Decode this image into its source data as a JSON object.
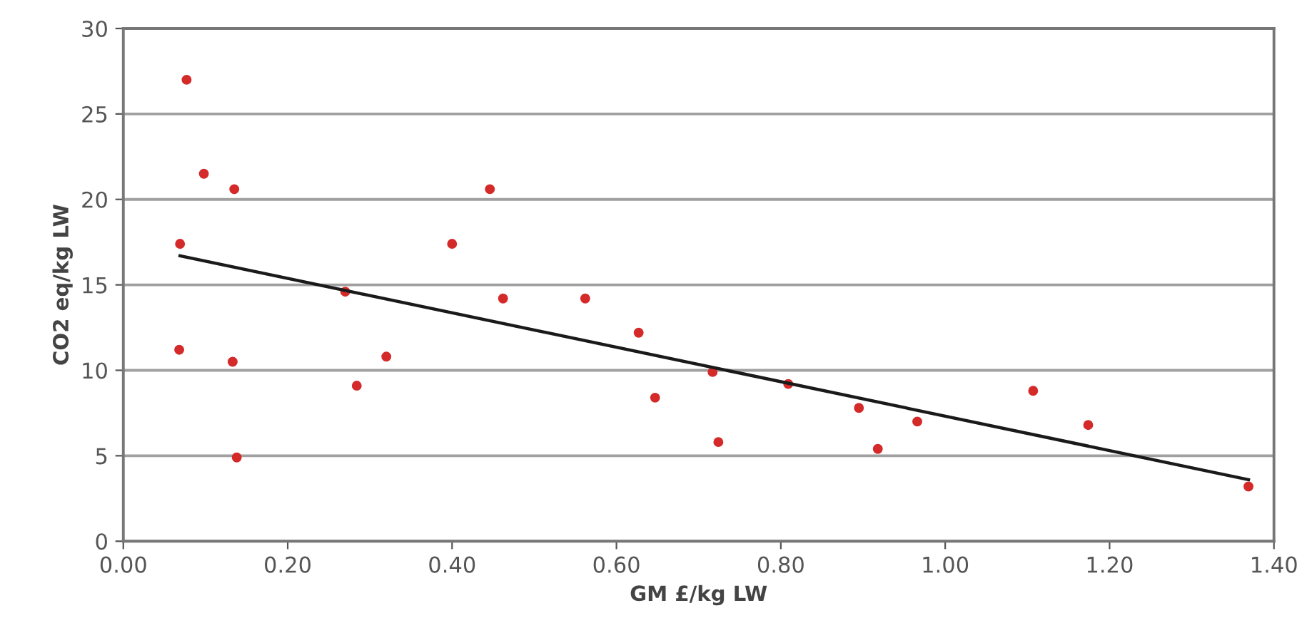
{
  "chart_data": {
    "type": "scatter",
    "xlabel": "GM £/kg LW",
    "ylabel": "CO2 eq/kg LW",
    "xlim": [
      0,
      1.4
    ],
    "xticks": [
      {
        "value": 0,
        "label": "0.00"
      },
      {
        "value": 0.2,
        "label": "0.20"
      },
      {
        "value": 0.4,
        "label": "0.40"
      },
      {
        "value": 0.6,
        "label": "0.60"
      },
      {
        "value": 0.8,
        "label": "0.80"
      },
      {
        "value": 1.0,
        "label": "1.00"
      },
      {
        "value": 1.2,
        "label": "1.20"
      },
      {
        "value": 1.4,
        "label": "1.40"
      }
    ],
    "ylim": [
      0,
      30
    ],
    "yticks": [
      0,
      5,
      10,
      15,
      20,
      25,
      30
    ],
    "grid": "y",
    "legend": false,
    "series": [
      {
        "color": "#d42a2a",
        "marker": "circle",
        "x": [
          0.068,
          0.069,
          0.077,
          0.098,
          0.135,
          0.133,
          0.138,
          0.27,
          0.284,
          0.32,
          0.4,
          0.446,
          0.462,
          0.562,
          0.627,
          0.647,
          0.717,
          0.724,
          0.809,
          0.895,
          0.918,
          0.966,
          1.107,
          1.174,
          1.369
        ],
        "values": [
          11.2,
          17.4,
          27.0,
          21.5,
          20.6,
          10.5,
          4.9,
          14.6,
          9.1,
          10.8,
          17.4,
          20.6,
          14.2,
          14.2,
          12.2,
          8.4,
          9.9,
          5.8,
          9.2,
          7.8,
          5.4,
          7.0,
          8.8,
          6.8,
          3.2
        ]
      },
      {
        "type": "line",
        "color": "#1a1a1a",
        "marker": "none",
        "line_style": "solid",
        "x": [
          0.069,
          1.369
        ],
        "values": [
          16.7,
          3.6
        ]
      }
    ]
  }
}
